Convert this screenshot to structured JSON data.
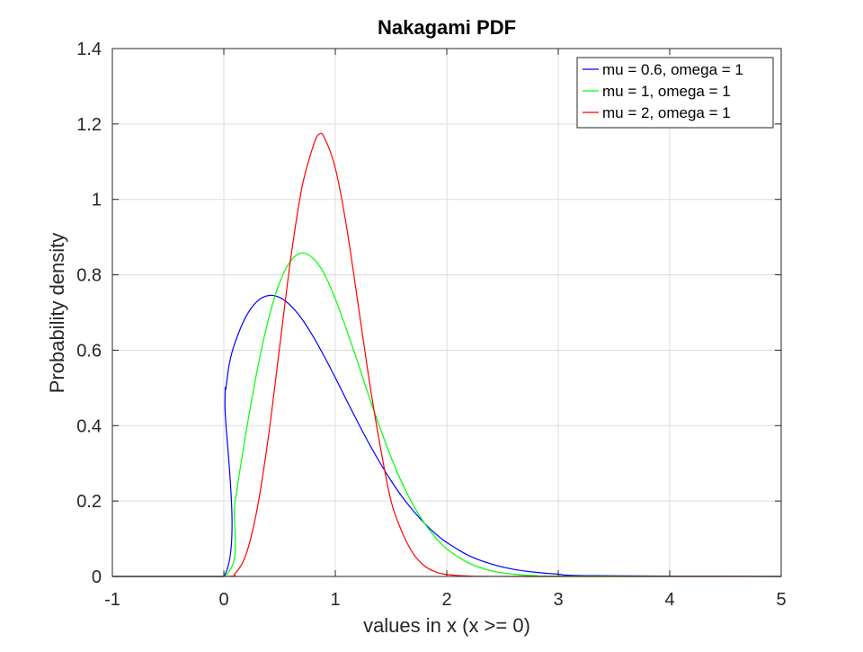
{
  "chart_data": {
    "type": "line",
    "title": "Nakagami PDF",
    "xlabel": "values in x (x >= 0)",
    "ylabel": "Probability density",
    "xlim": [
      -1,
      5
    ],
    "ylim": [
      0,
      1.4
    ],
    "xticks": [
      -1,
      0,
      1,
      2,
      3,
      4,
      5
    ],
    "xtick_labels": [
      "-1",
      "0",
      "1",
      "2",
      "3",
      "4",
      "5"
    ],
    "yticks": [
      0,
      0.2,
      0.4,
      0.6,
      0.8,
      1,
      1.2,
      1.4
    ],
    "ytick_labels": [
      "0",
      "0.2",
      "0.4",
      "0.6",
      "0.8",
      "1",
      "1.2",
      "1.4"
    ],
    "grid": true,
    "legend_position": "top-right",
    "series": [
      {
        "name": "mu = 0.6, omega = 1",
        "color": "#0000ff",
        "x": [
          -1,
          0,
          0.01,
          0.02,
          0.05,
          0.1,
          0.2,
          0.3,
          0.4,
          0.5,
          0.6,
          0.7,
          0.8,
          0.9,
          1.0,
          1.1,
          1.2,
          1.3,
          1.4,
          1.5,
          1.6,
          1.7,
          1.8,
          1.9,
          2.0,
          2.2,
          2.4,
          2.6,
          2.8,
          3.0,
          3.3,
          5
        ],
        "y": [
          0,
          0,
          0.456,
          0.5,
          0.565,
          0.62,
          0.69,
          0.73,
          0.745,
          0.74,
          0.718,
          0.683,
          0.637,
          0.584,
          0.527,
          0.468,
          0.41,
          0.354,
          0.302,
          0.254,
          0.211,
          0.174,
          0.141,
          0.113,
          0.09,
          0.055,
          0.033,
          0.019,
          0.011,
          0.006,
          0.002,
          0
        ]
      },
      {
        "name": "mu = 1, omega = 1",
        "color": "#00ff00",
        "x": [
          -1,
          0,
          0.1,
          0.2,
          0.3,
          0.4,
          0.5,
          0.6,
          0.7,
          0.8,
          0.9,
          1.0,
          1.1,
          1.2,
          1.3,
          1.4,
          1.5,
          1.6,
          1.7,
          1.8,
          1.9,
          2.0,
          2.2,
          2.4,
          2.6,
          2.8,
          3.0,
          5
        ],
        "y": [
          0,
          0,
          0.198,
          0.384,
          0.548,
          0.682,
          0.779,
          0.837,
          0.858,
          0.844,
          0.803,
          0.736,
          0.655,
          0.569,
          0.479,
          0.395,
          0.316,
          0.247,
          0.189,
          0.141,
          0.103,
          0.073,
          0.035,
          0.015,
          0.006,
          0.002,
          0.001,
          0
        ]
      },
      {
        "name": "mu = 2, omega = 1",
        "color": "#ff0000",
        "x": [
          -1,
          0,
          0.1,
          0.2,
          0.3,
          0.4,
          0.5,
          0.6,
          0.7,
          0.8,
          0.85,
          0.9,
          1.0,
          1.1,
          1.2,
          1.3,
          1.4,
          1.5,
          1.6,
          1.7,
          1.8,
          1.9,
          2.0,
          2.2,
          2.4,
          2.6,
          3.0,
          5
        ],
        "y": [
          0,
          0,
          0.0078,
          0.059,
          0.181,
          0.371,
          0.607,
          0.843,
          1.031,
          1.14,
          1.172,
          1.165,
          1.083,
          0.929,
          0.731,
          0.528,
          0.35,
          0.2,
          0.117,
          0.06,
          0.028,
          0.012,
          0.005,
          0.001,
          0.0002,
          0,
          0,
          0
        ]
      }
    ]
  }
}
